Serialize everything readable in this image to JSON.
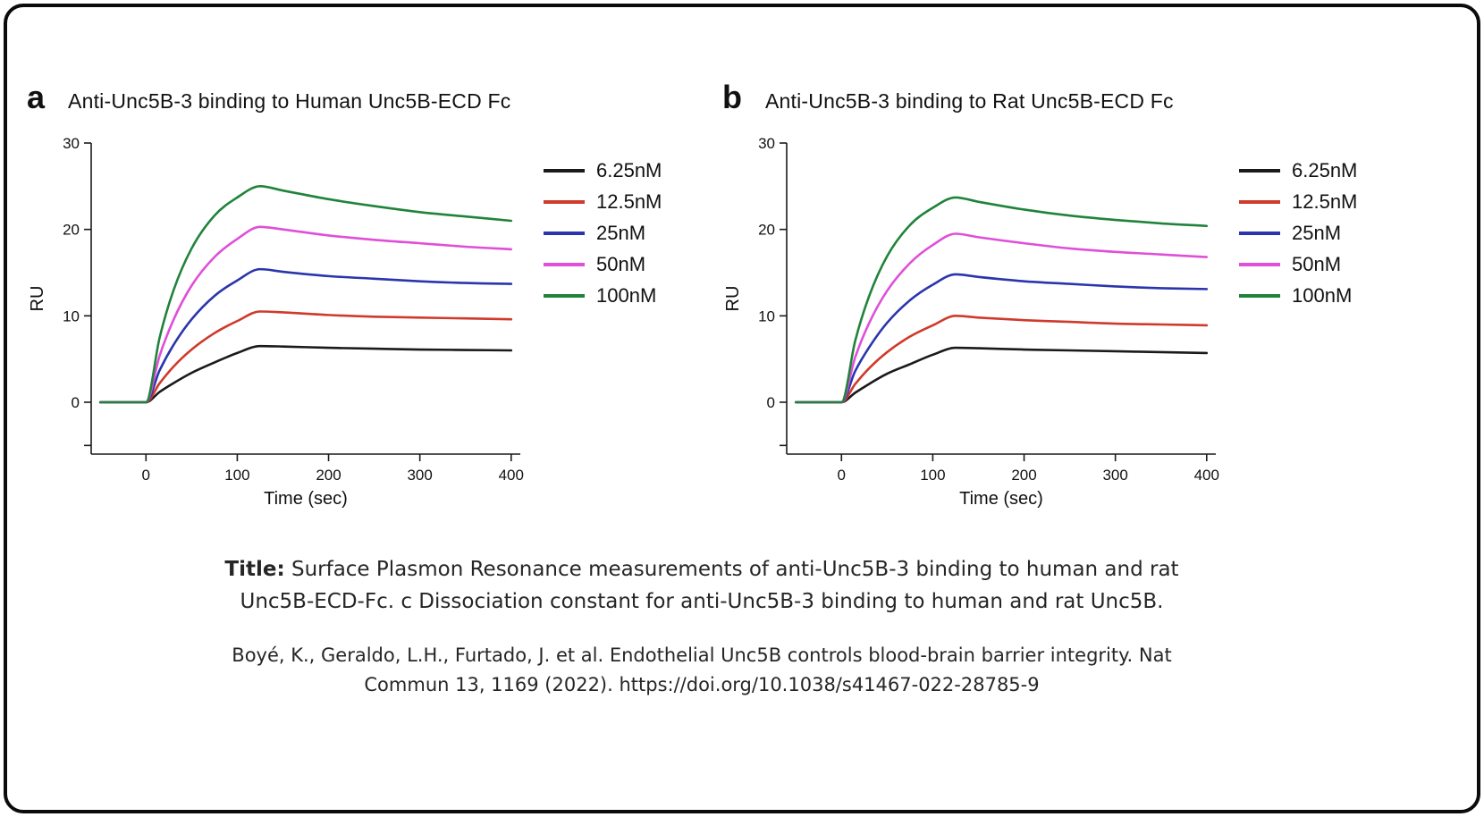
{
  "figure": {
    "caption": {
      "prefix": "Title:",
      "line1_rest": " Surface Plasmon Resonance measurements of anti-Unc5B-3 binding to human and rat",
      "line2": "Unc5B-ECD-Fc. c Dissociation constant for anti-Unc5B-3 binding to human and rat Unc5B."
    },
    "citation": {
      "line1": "Boyé, K., Geraldo, L.H., Furtado, J. et al. Endothelial Unc5B controls blood-brain barrier integrity. Nat",
      "line2": "Commun 13, 1169 (2022). https://doi.org/10.1038/s41467-022-28785-9"
    }
  },
  "chart_data": [
    {
      "type": "line",
      "panel_label": "a",
      "title": "Anti-Unc5B-3 binding to Human Unc5B-ECD Fc",
      "xlabel": "Time (sec)",
      "ylabel": "RU",
      "xlim": [
        -60,
        410
      ],
      "ylim": [
        -6,
        30
      ],
      "xticks": [
        0,
        100,
        200,
        300,
        400
      ],
      "yticks": [
        0,
        10,
        20,
        30
      ],
      "yticks_minor": [
        -5
      ],
      "grid": false,
      "legend_position": "right",
      "x": [
        -50,
        0,
        15,
        30,
        50,
        75,
        100,
        125,
        150,
        200,
        250,
        300,
        350,
        400
      ],
      "series": [
        {
          "name": "6.25nM",
          "color": "#1a1a1a",
          "values": [
            0,
            0,
            1.2,
            2.2,
            3.4,
            4.6,
            5.7,
            6.5,
            6.45,
            6.3,
            6.2,
            6.1,
            6.05,
            6.0
          ]
        },
        {
          "name": "12.5nM",
          "color": "#cf3a2b",
          "values": [
            0,
            0,
            2.2,
            4.1,
            6.1,
            8.0,
            9.4,
            10.5,
            10.4,
            10.1,
            9.9,
            9.8,
            9.7,
            9.6
          ]
        },
        {
          "name": "25nM",
          "color": "#2a35ad",
          "values": [
            0,
            0,
            3.7,
            6.6,
            9.6,
            12.3,
            14.1,
            15.4,
            15.1,
            14.6,
            14.3,
            14.0,
            13.8,
            13.7
          ]
        },
        {
          "name": "50nM",
          "color": "#df4fd8",
          "values": [
            0,
            0,
            5.4,
            9.5,
            13.5,
            16.8,
            18.9,
            20.3,
            20.0,
            19.3,
            18.8,
            18.4,
            18.0,
            17.7
          ]
        },
        {
          "name": "100nM",
          "color": "#20833b",
          "values": [
            0,
            0,
            7.5,
            12.9,
            17.8,
            21.6,
            23.7,
            25.0,
            24.5,
            23.5,
            22.7,
            22.0,
            21.5,
            21.0
          ]
        }
      ]
    },
    {
      "type": "line",
      "panel_label": "b",
      "title": "Anti-Unc5B-3 binding to Rat Unc5B-ECD Fc",
      "xlabel": "Time (sec)",
      "ylabel": "RU",
      "xlim": [
        -60,
        410
      ],
      "ylim": [
        -6,
        30
      ],
      "xticks": [
        0,
        100,
        200,
        300,
        400
      ],
      "yticks": [
        0,
        10,
        20,
        30
      ],
      "yticks_minor": [
        -5
      ],
      "grid": false,
      "legend_position": "right",
      "x": [
        -50,
        0,
        15,
        30,
        50,
        75,
        100,
        125,
        150,
        200,
        250,
        300,
        350,
        400
      ],
      "series": [
        {
          "name": "6.25nM",
          "color": "#1a1a1a",
          "values": [
            0,
            0,
            1.1,
            2.1,
            3.3,
            4.4,
            5.5,
            6.3,
            6.25,
            6.1,
            6.0,
            5.9,
            5.8,
            5.7
          ]
        },
        {
          "name": "12.5nM",
          "color": "#cf3a2b",
          "values": [
            0,
            0,
            2.1,
            3.9,
            5.8,
            7.6,
            8.9,
            10.0,
            9.8,
            9.5,
            9.3,
            9.1,
            9.0,
            8.9
          ]
        },
        {
          "name": "25nM",
          "color": "#2a35ad",
          "values": [
            0,
            0,
            3.6,
            6.3,
            9.2,
            11.8,
            13.6,
            14.8,
            14.5,
            14.0,
            13.7,
            13.4,
            13.2,
            13.1
          ]
        },
        {
          "name": "50nM",
          "color": "#df4fd8",
          "values": [
            0,
            0,
            5.2,
            9.1,
            12.9,
            16.1,
            18.2,
            19.5,
            19.1,
            18.4,
            17.8,
            17.4,
            17.1,
            16.8
          ]
        },
        {
          "name": "100nM",
          "color": "#20833b",
          "values": [
            0,
            0,
            7.1,
            12.2,
            16.9,
            20.5,
            22.5,
            23.7,
            23.2,
            22.3,
            21.6,
            21.1,
            20.7,
            20.4
          ]
        }
      ]
    }
  ]
}
